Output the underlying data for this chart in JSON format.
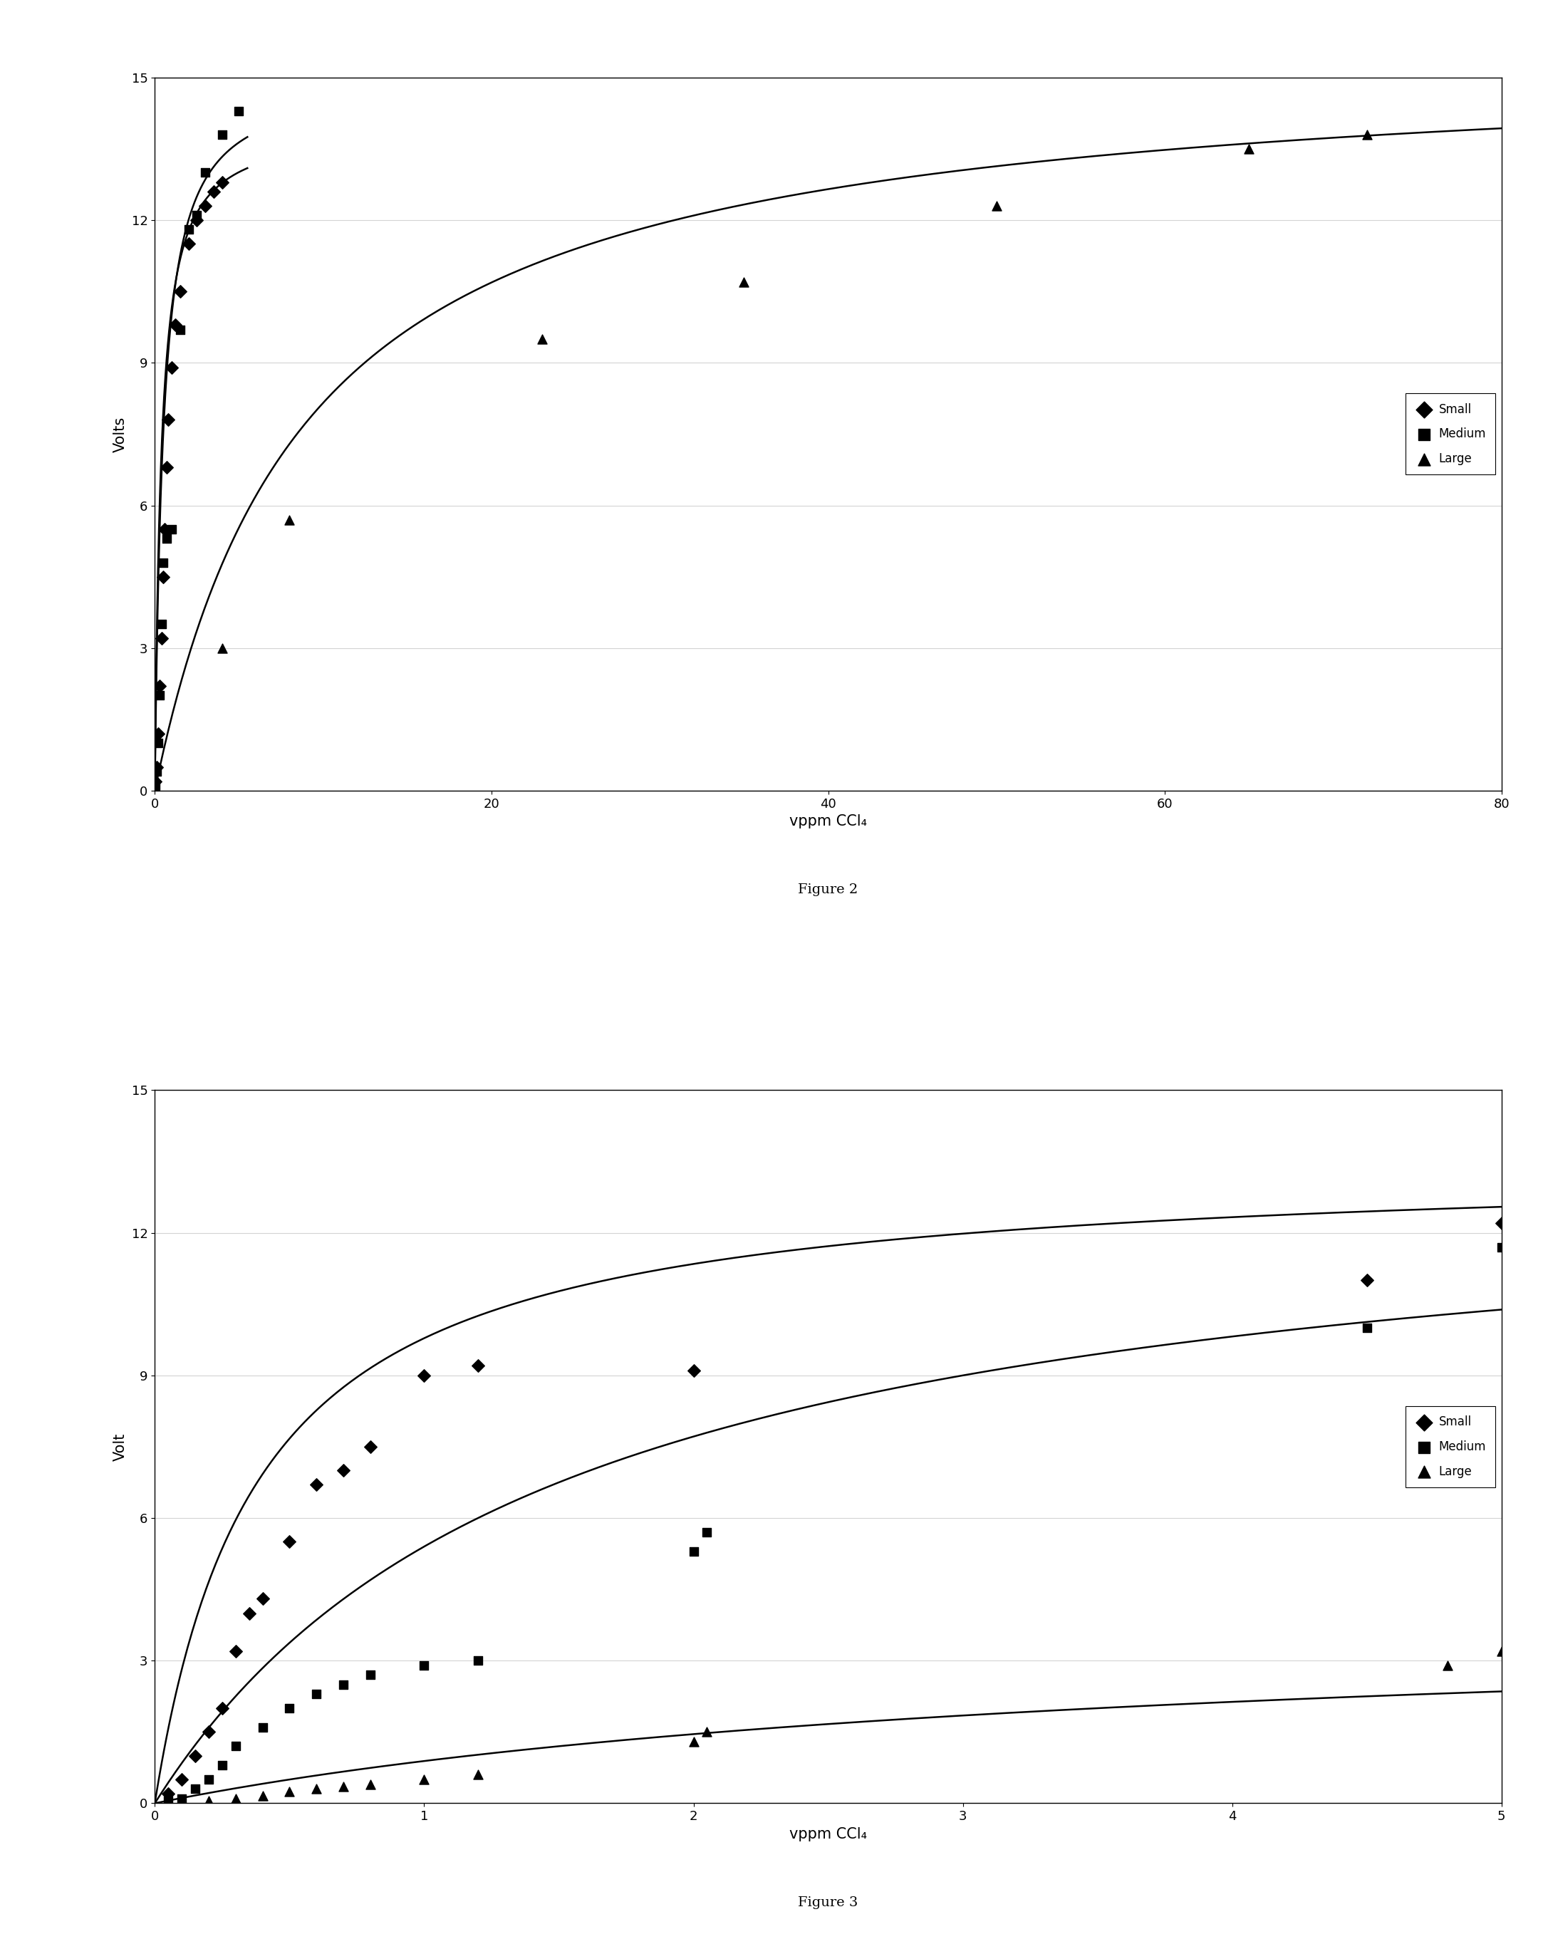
{
  "fig2": {
    "title": "Figure 2",
    "xlabel": "vppm CCl₄",
    "ylabel": "Volts",
    "xlim": [
      0,
      80
    ],
    "ylim": [
      0,
      15
    ],
    "xticks": [
      0,
      20,
      40,
      60,
      80
    ],
    "yticks": [
      0,
      3,
      6,
      9,
      12,
      15
    ],
    "small_x": [
      0.05,
      0.1,
      0.2,
      0.3,
      0.4,
      0.5,
      0.6,
      0.7,
      0.8,
      1.0,
      1.2,
      1.5,
      2.0,
      2.5,
      3.0,
      3.5,
      4.0
    ],
    "small_y": [
      0.2,
      0.5,
      1.2,
      2.2,
      3.2,
      4.5,
      5.5,
      6.8,
      7.8,
      8.9,
      9.8,
      10.5,
      11.5,
      12.0,
      12.3,
      12.6,
      12.8
    ],
    "medium_x": [
      0.05,
      0.1,
      0.2,
      0.3,
      0.4,
      0.5,
      0.7,
      1.0,
      1.5,
      2.0,
      2.5,
      3.0,
      4.0,
      5.0
    ],
    "medium_y": [
      0.1,
      0.4,
      1.0,
      2.0,
      3.5,
      4.8,
      5.3,
      5.5,
      9.7,
      11.8,
      12.1,
      13.0,
      13.8,
      14.3
    ],
    "large_x": [
      4.0,
      8.0,
      23.0,
      35.0,
      50.0,
      65.0,
      72.0
    ],
    "large_y": [
      3.0,
      5.7,
      9.5,
      10.7,
      12.3,
      13.5,
      13.8
    ],
    "small_vmax": 14.0,
    "small_km": 0.38,
    "medium_vmax": 15.0,
    "medium_km": 0.5,
    "large_vmax": 15.5,
    "large_km": 9.0
  },
  "fig3": {
    "title": "Figure 3",
    "xlabel": "vppm CCl₄",
    "ylabel": "Volt",
    "xlim": [
      0,
      5
    ],
    "ylim": [
      0,
      15
    ],
    "xticks": [
      0,
      1,
      2,
      3,
      4,
      5
    ],
    "yticks": [
      0,
      3,
      6,
      9,
      12,
      15
    ],
    "small_x": [
      0.05,
      0.1,
      0.15,
      0.2,
      0.25,
      0.3,
      0.35,
      0.4,
      0.5,
      0.6,
      0.7,
      0.8,
      1.0,
      1.2,
      2.0,
      4.5,
      5.0
    ],
    "small_y": [
      0.2,
      0.5,
      1.0,
      1.5,
      2.0,
      3.2,
      4.0,
      4.3,
      5.5,
      6.7,
      7.0,
      7.5,
      9.0,
      9.2,
      9.1,
      11.0,
      12.2
    ],
    "medium_x": [
      0.05,
      0.1,
      0.15,
      0.2,
      0.25,
      0.3,
      0.4,
      0.5,
      0.6,
      0.7,
      0.8,
      1.0,
      1.2,
      2.0,
      2.05,
      4.5,
      5.0
    ],
    "medium_y": [
      0.05,
      0.1,
      0.3,
      0.5,
      0.8,
      1.2,
      1.6,
      2.0,
      2.3,
      2.5,
      2.7,
      2.9,
      3.0,
      5.3,
      5.7,
      10.0,
      11.7
    ],
    "large_x": [
      0.1,
      0.2,
      0.3,
      0.4,
      0.5,
      0.6,
      0.7,
      0.8,
      1.0,
      1.2,
      2.0,
      2.05,
      4.8,
      5.0
    ],
    "large_y": [
      0.02,
      0.05,
      0.1,
      0.15,
      0.25,
      0.3,
      0.35,
      0.4,
      0.5,
      0.6,
      1.3,
      1.5,
      2.9,
      3.2
    ],
    "small_vmax": 13.5,
    "small_km": 0.38,
    "medium_vmax": 13.5,
    "medium_km": 1.5,
    "large_vmax": 4.0,
    "large_km": 3.5
  },
  "line_color": "#000000",
  "marker_color": "#000000",
  "background_color": "#ffffff",
  "fig_label_fontsize": 14,
  "axis_label_fontsize": 15,
  "tick_fontsize": 13,
  "legend_fontsize": 12,
  "dpi": 100
}
